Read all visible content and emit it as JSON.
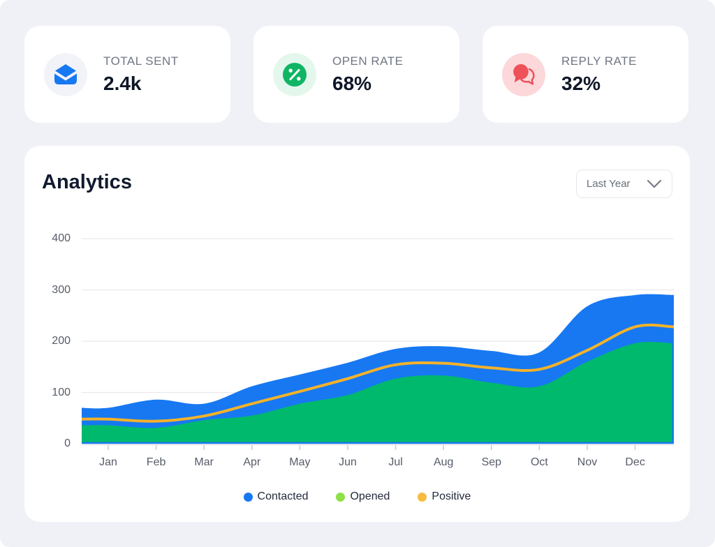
{
  "stats": [
    {
      "label": "TOTAL SENT",
      "value": "2.4k",
      "icon": "mail-icon",
      "icon_color": "#1778F2",
      "icon_bg": "#F1F3F9"
    },
    {
      "label": "OPEN RATE",
      "value": "68%",
      "icon": "percent-icon",
      "icon_color": "#10B564",
      "icon_bg": "#E4F7ED"
    },
    {
      "label": "REPLY RATE",
      "value": "32%",
      "icon": "chat-icon",
      "icon_color": "#EE5159",
      "icon_bg": "#FCD8DA"
    }
  ],
  "analytics": {
    "title": "Analytics",
    "range_selector": {
      "value": "Last Year"
    }
  },
  "chart_data": {
    "type": "area",
    "title": "Analytics",
    "categories": [
      "Jan",
      "Feb",
      "Mar",
      "Apr",
      "May",
      "Jun",
      "Jul",
      "Aug",
      "Sep",
      "Oct",
      "Nov",
      "Dec"
    ],
    "series": [
      {
        "name": "Contacted",
        "type": "area",
        "color": "#1778F2",
        "legend_color": "#1778F2",
        "values": [
          70,
          86,
          78,
          112,
          135,
          158,
          185,
          190,
          181,
          178,
          268,
          290
        ]
      },
      {
        "name": "Opened",
        "type": "area",
        "color": "#00B96D",
        "legend_color": "#8FE046",
        "values": [
          36,
          31,
          46,
          55,
          78,
          95,
          127,
          133,
          119,
          112,
          160,
          196
        ]
      },
      {
        "name": "Positive",
        "type": "line",
        "color": "#F3B22A",
        "legend_color": "#F6BC40",
        "values": [
          48,
          44,
          54,
          78,
          102,
          127,
          154,
          157,
          148,
          145,
          182,
          228
        ]
      }
    ],
    "yticks": [
      0,
      100,
      200,
      300,
      400
    ],
    "ylim": [
      0,
      416
    ],
    "grid": "horizontal",
    "grid_color": "#EAEAEE",
    "axis_color": "#D2D5DB",
    "legend_position": "bottom"
  }
}
